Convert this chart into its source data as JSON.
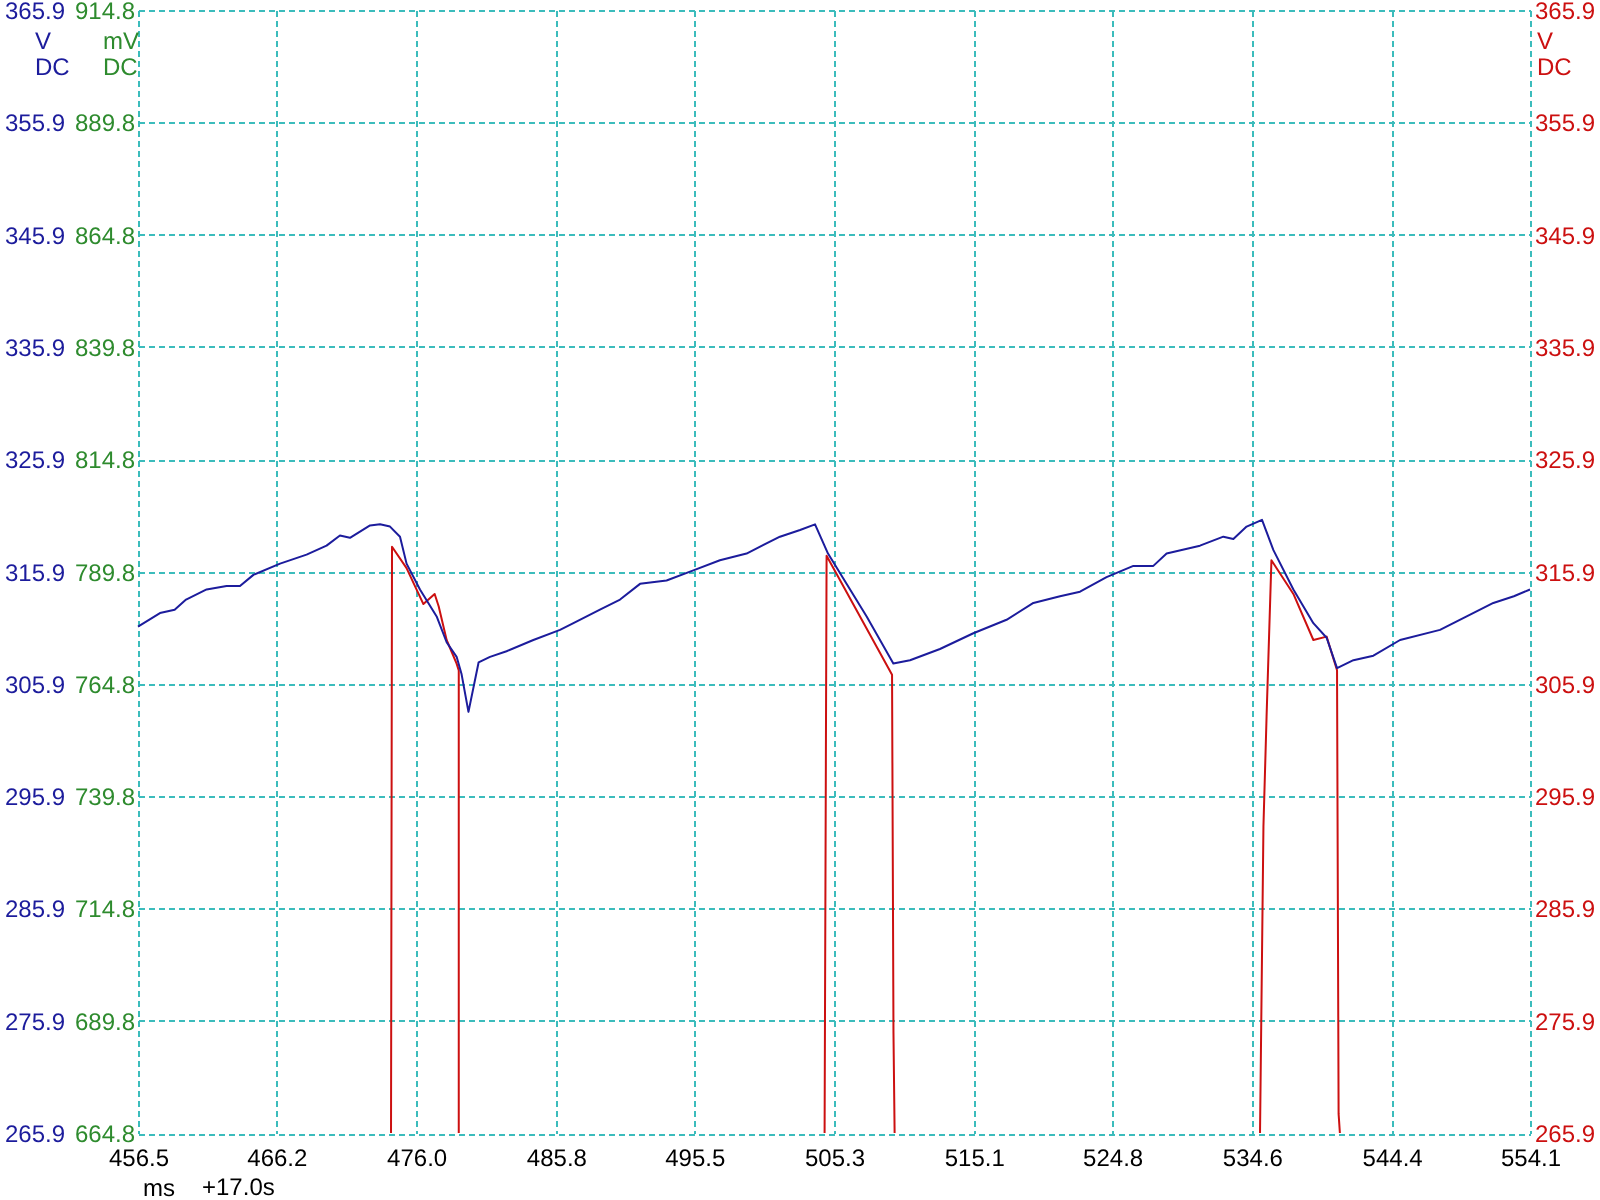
{
  "chart_data": {
    "type": "line",
    "xlabel": "ms",
    "ylabel": "V DC",
    "y2label": "V DC",
    "y3label": "mV DC",
    "annotations": [
      "+17.0s"
    ],
    "xlim": [
      456.5,
      554.1
    ],
    "xticks": [
      456.5,
      466.2,
      {
        "value": 476.0,
        "label": "476.0"
      },
      485.8,
      495.5,
      505.3,
      515.1,
      524.8,
      534.6,
      544.4,
      554.1
    ],
    "ylim": [
      265.9,
      365.9
    ],
    "yticks": [
      265.9,
      275.9,
      285.9,
      295.9,
      305.9,
      315.9,
      325.9,
      335.9,
      345.9,
      355.9,
      365.9
    ],
    "y2lim": [
      265.9,
      365.9
    ],
    "y2ticks": [
      265.9,
      275.9,
      285.9,
      295.9,
      305.9,
      315.9,
      325.9,
      335.9,
      345.9,
      355.9,
      365.9
    ],
    "y3lim": [
      664.8,
      914.8
    ],
    "y3ticks": [
      664.8,
      689.8,
      714.8,
      739.8,
      764.8,
      789.8,
      814.8,
      839.8,
      864.8,
      889.8,
      914.8
    ],
    "grid": true,
    "series": [
      {
        "color": "#1c1c9c",
        "x": [
          456.5,
          458.04,
          459.07,
          459.87,
          461.31,
          462.71,
          463.65,
          464.59,
          466.46,
          468.32,
          469.72,
          470.66,
          471.36,
          472.77,
          473.47,
          474.17,
          474.87,
          475.33,
          476.27,
          477.44,
          478.14,
          478.84,
          479.18,
          479.67,
          480.38,
          481.18,
          482.34,
          484.22,
          486.09,
          487.03,
          488.89,
          490.3,
          491.7,
          493.56,
          495.44,
          497.3,
          499.17,
          501.51,
          502.92,
          503.97,
          504.88,
          506.18,
          507.59,
          509.46,
          510.63,
          512.73,
          515.07,
          517.4,
          519.28,
          521.15,
          522.55,
          524.41,
          526.29,
          527.69,
          528.62,
          530.96,
          532.6,
          533.3,
          534.23,
          535.31,
          536.11,
          537.51,
          538.91,
          539.84,
          540.57,
          541.72,
          543.12,
          544.99,
          547.79,
          549.66,
          551.53,
          552.97,
          554.1
        ],
        "values": [
          311.0,
          312.2,
          312.5,
          313.4,
          314.3,
          314.6,
          314.6,
          315.6,
          316.6,
          317.4,
          318.2,
          319.1,
          318.9,
          320.0,
          320.1,
          319.9,
          319.0,
          316.6,
          314.3,
          311.9,
          309.6,
          308.3,
          306.8,
          303.4,
          307.8,
          308.3,
          308.8,
          309.8,
          310.7,
          311.3,
          312.5,
          313.4,
          314.8,
          315.1,
          316.0,
          316.9,
          317.5,
          319.0,
          319.6,
          320.1,
          317.5,
          314.8,
          311.9,
          307.7,
          308.0,
          309.0,
          310.4,
          311.6,
          313.1,
          313.7,
          314.1,
          315.4,
          316.4,
          316.4,
          317.5,
          318.2,
          319.0,
          318.8,
          319.9,
          320.5,
          317.8,
          314.3,
          311.3,
          310.0,
          307.3,
          308.0,
          308.4,
          309.8,
          310.7,
          311.9,
          313.1,
          313.7,
          314.3
        ]
      },
      {
        "color": "#cc1010",
        "axis": "y2",
        "x": [
          474.24,
          474.31,
          475.33,
          476.51,
          477.3,
          477.58,
          478.14,
          478.84,
          478.99,
          478.99,
          492.0,
          504.64,
          504.78,
          509.37,
          509.47,
          509.55,
          522.0,
          535.17,
          535.41,
          535.63,
          535.97,
          537.51,
          538.91,
          539.84,
          540.57,
          540.68,
          540.77
        ],
        "values": [
          265.9,
          318.1,
          316.2,
          313.0,
          313.9,
          312.8,
          309.8,
          307.7,
          307.1,
          265.9,
          null,
          265.9,
          317.3,
          306.7,
          274.8,
          265.9,
          null,
          265.9,
          293.2,
          303.0,
          316.9,
          313.9,
          309.8,
          310.1,
          307.1,
          267.6,
          265.9
        ]
      }
    ]
  }
}
